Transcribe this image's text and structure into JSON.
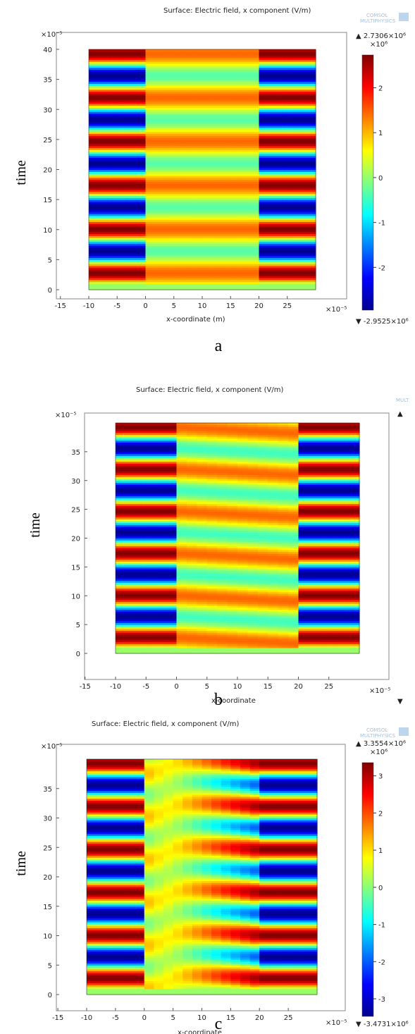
{
  "figure": {
    "panels": [
      {
        "id": "a",
        "caption": "a",
        "title": "Surface: Electric field, x component (V/m)",
        "ylabel": "time",
        "xlabel": "x-coordinate (m)",
        "y_exponent": "×10⁻⁵",
        "x_exponent": "×10⁻⁵",
        "logo": [
          "COMSOL",
          "MULTIPHYSICS"
        ],
        "colorbar_max": "▲ 2.7306×10⁶",
        "colorbar_min": "▼ -2.9525×10⁶",
        "colorbar_exponent": "×10⁶"
      },
      {
        "id": "b",
        "caption": "b",
        "title": "Surface: Electric field, x component (V/m)",
        "ylabel": "time",
        "xlabel": "x-coordinate",
        "y_exponent": "×10⁻⁵",
        "x_exponent": "×10⁻⁵",
        "logo": [
          "MULT",
          ""
        ],
        "colorbar_max": "▲",
        "colorbar_min": "▼",
        "colorbar_exponent": ""
      },
      {
        "id": "c",
        "caption": "c",
        "title": "Surface: Electric field, x component (V/m)",
        "ylabel": "time",
        "xlabel": "x-coordinate",
        "y_exponent": "×10⁻⁵",
        "x_exponent": "×10⁻⁵",
        "logo": [
          "COMSOL",
          "MULTIPHYSICS"
        ],
        "colorbar_max": "▲ 3.3554×10⁶",
        "colorbar_min": "▼ -3.4731×10⁶",
        "colorbar_exponent": "×10⁶"
      }
    ]
  },
  "chart_data": [
    {
      "type": "heatmap",
      "panel": "a",
      "title": "Surface: Electric field, x component (V/m)",
      "xlabel": "x-coordinate (m)",
      "ylabel": "time",
      "x_range": [
        -15,
        30
      ],
      "x_domain": [
        -10,
        30
      ],
      "y_range": [
        -1,
        41
      ],
      "y_domain": [
        0,
        40
      ],
      "x_ticks": [
        "-15",
        "-10",
        "-5",
        "0",
        "5",
        "10",
        "15",
        "20",
        "25"
      ],
      "x_tick_values": [
        -15,
        -10,
        -5,
        0,
        5,
        10,
        15,
        20,
        25
      ],
      "y_ticks": [
        "0",
        "5",
        "10",
        "15",
        "20",
        "25",
        "30",
        "35",
        "40"
      ],
      "y_tick_values": [
        0,
        5,
        10,
        15,
        20,
        25,
        30,
        35,
        40
      ],
      "regions": [
        {
          "x": [
            -10,
            0
          ],
          "pattern": "outer_bands",
          "period": 7.3,
          "amplitude": 1.0
        },
        {
          "x": [
            0,
            20
          ],
          "pattern": "inner_bands",
          "period": 7.3,
          "amplitude": 0.45,
          "offset": 0.1
        },
        {
          "x": [
            20,
            30
          ],
          "pattern": "outer_bands",
          "period": 7.3,
          "amplitude": 1.0
        }
      ],
      "colorbar": {
        "max": 2.7306,
        "min": -2.9525,
        "ticks": [
          2,
          1,
          0,
          -1,
          -2
        ],
        "scale": "×10⁶"
      }
    },
    {
      "type": "heatmap",
      "panel": "b",
      "title": "Surface: Electric field, x component (V/m)",
      "xlabel": "x-coordinate",
      "ylabel": "time",
      "x_range": [
        -15,
        30
      ],
      "x_domain": [
        -10,
        30
      ],
      "y_range": [
        -1,
        40
      ],
      "y_domain": [
        0,
        40
      ],
      "x_ticks": [
        "-15",
        "-10",
        "-5",
        "0",
        "5",
        "10",
        "15",
        "20",
        "25"
      ],
      "x_tick_values": [
        -15,
        -10,
        -5,
        0,
        5,
        10,
        15,
        20,
        25
      ],
      "y_ticks": [
        "0",
        "5",
        "10",
        "15",
        "20",
        "25",
        "30",
        "35"
      ],
      "y_tick_values": [
        0,
        5,
        10,
        15,
        20,
        25,
        30,
        35
      ],
      "regions": [
        {
          "x": [
            -10,
            0
          ],
          "pattern": "outer_bands",
          "period": 7.3,
          "amplitude": 1.0
        },
        {
          "x": [
            0,
            20
          ],
          "pattern": "inner_slant",
          "period": 7.3,
          "amplitude": 0.45,
          "offset": 0.1
        },
        {
          "x": [
            20,
            30
          ],
          "pattern": "outer_bands",
          "period": 7.3,
          "amplitude": 1.0
        }
      ],
      "colorbar": null
    },
    {
      "type": "heatmap",
      "panel": "c",
      "title": "Surface: Electric field, x component (V/m)",
      "xlabel": "x-coordinate",
      "ylabel": "time",
      "x_range": [
        -15,
        30
      ],
      "x_domain": [
        -10,
        30
      ],
      "y_range": [
        -1,
        40
      ],
      "y_domain": [
        0,
        40
      ],
      "x_ticks": [
        "-15",
        "-10",
        "-5",
        "0",
        "5",
        "10",
        "15",
        "20",
        "25"
      ],
      "x_tick_values": [
        -15,
        -10,
        -5,
        0,
        5,
        10,
        15,
        20,
        25
      ],
      "y_ticks": [
        "0",
        "5",
        "10",
        "15",
        "20",
        "25",
        "30",
        "35"
      ],
      "y_tick_values": [
        0,
        5,
        10,
        15,
        20,
        25,
        30,
        35
      ],
      "regions": [
        {
          "x": [
            -10,
            0
          ],
          "pattern": "outer_bands",
          "period": 7.3,
          "amplitude": 1.0
        },
        {
          "x": [
            0,
            20
          ],
          "pattern": "inner_growing",
          "period": 7.3,
          "amplitude": 0.9,
          "offset": 0.05
        },
        {
          "x": [
            20,
            30
          ],
          "pattern": "outer_bands",
          "period": 7.3,
          "amplitude": 1.0
        }
      ],
      "colorbar": {
        "max": 3.3554,
        "min": -3.4731,
        "ticks": [
          3,
          2,
          1,
          0,
          -1,
          -2,
          -3
        ],
        "scale": "×10⁶"
      }
    }
  ]
}
